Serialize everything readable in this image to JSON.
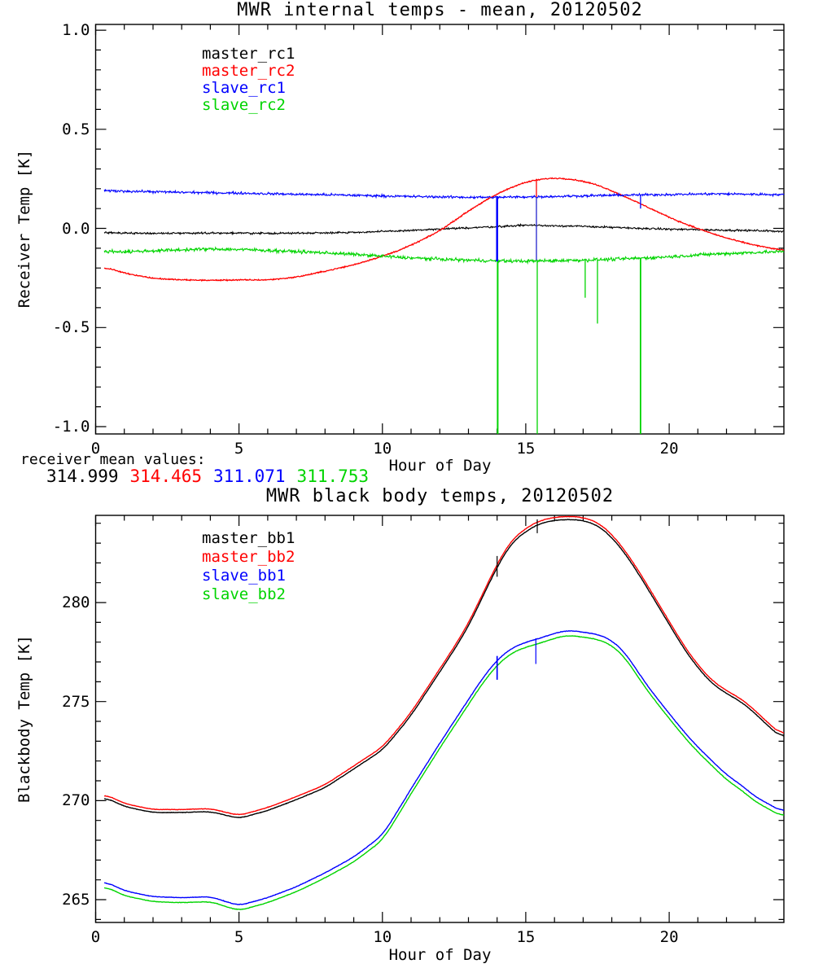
{
  "annotation": {
    "header": "receiver mean values:",
    "values": [
      {
        "text": "314.999",
        "color": "#000000"
      },
      {
        "text": "314.465",
        "color": "#ff0000"
      },
      {
        "text": "311.071",
        "color": "#0000ff"
      },
      {
        "text": "311.753",
        "color": "#00d400"
      }
    ]
  },
  "chart_data": [
    {
      "type": "line",
      "title": "MWR internal temps - mean, 20120502",
      "xlabel": "Hour of Day",
      "ylabel": "Receiver Temp [K]",
      "xlim": [
        0,
        24
      ],
      "ylim": [
        -1.037,
        1.029
      ],
      "grid": false,
      "legend_position": "upper-left-inside",
      "xticks": {
        "major": [
          0,
          5,
          10,
          15,
          20
        ],
        "labels": [
          "0",
          "5",
          "10",
          "15",
          "20"
        ],
        "minor_step": 1
      },
      "yticks": {
        "major": [
          -1.0,
          -0.5,
          0.0,
          0.5,
          1.0
        ],
        "labels": [
          "-1.0",
          "-0.5",
          "0.0",
          "0.5",
          "1.0"
        ],
        "minor_step": 0.1
      },
      "legend": [
        {
          "label": "master_rc1",
          "color": "#000000"
        },
        {
          "label": "master_rc2",
          "color": "#ff0000"
        },
        {
          "label": "slave_rc1",
          "color": "#0000ff"
        },
        {
          "label": "slave_rc2",
          "color": "#00d400"
        }
      ],
      "series": [
        {
          "name": "master_rc1",
          "color": "#000000",
          "noise": 0.0045,
          "width": 1.1,
          "x": [
            0.3,
            1,
            2,
            3,
            4,
            5,
            6,
            7,
            8,
            9,
            10,
            10.5,
            11,
            11.5,
            12,
            12.5,
            13,
            13.5,
            14,
            14.5,
            15,
            15.5,
            16,
            16.5,
            17,
            17.5,
            18,
            18.5,
            19,
            19.5,
            20,
            20.5,
            21,
            21.5,
            22,
            22.5,
            23,
            23.5,
            24
          ],
          "y": [
            -0.022,
            -0.023,
            -0.025,
            -0.024,
            -0.023,
            -0.024,
            -0.025,
            -0.024,
            -0.022,
            -0.02,
            -0.016,
            -0.013,
            -0.01,
            -0.007,
            -0.004,
            -0.001,
            0.003,
            0.006,
            0.009,
            0.012,
            0.018,
            0.014,
            0.014,
            0.012,
            0.01,
            0.008,
            0.005,
            0.002,
            0.0,
            -0.002,
            -0.004,
            -0.005,
            -0.006,
            -0.008,
            -0.009,
            -0.01,
            -0.011,
            -0.013,
            -0.015
          ]
        },
        {
          "name": "master_rc2",
          "color": "#ff0000",
          "noise": 0.003,
          "width": 1.3,
          "x": [
            0.3,
            1,
            2,
            3,
            4,
            5,
            6,
            7,
            8,
            9,
            10,
            10.5,
            11,
            11.5,
            12,
            12.5,
            13,
            13.5,
            14,
            14.5,
            15,
            15.5,
            16,
            16.5,
            17,
            17.5,
            18,
            18.5,
            19,
            19.5,
            20,
            20.5,
            21,
            21.5,
            22,
            22.5,
            23,
            23.5,
            24
          ],
          "y": [
            -0.195,
            -0.225,
            -0.252,
            -0.26,
            -0.262,
            -0.26,
            -0.26,
            -0.246,
            -0.216,
            -0.184,
            -0.14,
            -0.115,
            -0.085,
            -0.05,
            -0.012,
            0.038,
            0.088,
            0.133,
            0.173,
            0.208,
            0.233,
            0.248,
            0.254,
            0.25,
            0.238,
            0.219,
            0.19,
            0.158,
            0.124,
            0.09,
            0.056,
            0.026,
            -0.001,
            -0.026,
            -0.049,
            -0.068,
            -0.085,
            -0.099,
            -0.112
          ]
        },
        {
          "name": "slave_rc1",
          "color": "#0000ff",
          "noise": 0.006,
          "width": 1.1,
          "x": [
            0.3,
            1,
            2,
            3,
            4,
            5,
            6,
            7,
            8,
            9,
            10,
            10.5,
            11,
            11.5,
            12,
            12.5,
            13,
            13.5,
            14,
            14.5,
            15,
            15.5,
            16,
            16.5,
            17,
            17.5,
            18,
            18.5,
            19,
            19.5,
            20,
            20.5,
            21,
            21.5,
            22,
            22.5,
            23,
            23.5,
            24
          ],
          "y": [
            0.19,
            0.188,
            0.185,
            0.182,
            0.18,
            0.178,
            0.175,
            0.172,
            0.17,
            0.167,
            0.164,
            0.162,
            0.161,
            0.16,
            0.159,
            0.158,
            0.157,
            0.157,
            0.157,
            0.158,
            0.159,
            0.16,
            0.161,
            0.163,
            0.164,
            0.166,
            0.167,
            0.168,
            0.169,
            0.17,
            0.171,
            0.172,
            0.173,
            0.174,
            0.174,
            0.173,
            0.172,
            0.171,
            0.17
          ]
        },
        {
          "name": "slave_rc2",
          "color": "#00d400",
          "noise": 0.008,
          "width": 1.1,
          "x": [
            0.3,
            1,
            2,
            3,
            4,
            5,
            6,
            7,
            8,
            9,
            10,
            10.5,
            11,
            11.5,
            12,
            12.5,
            13,
            13.5,
            14,
            14.5,
            15,
            15.5,
            16,
            16.5,
            17,
            17.5,
            18,
            18.5,
            19,
            19.5,
            20,
            20.5,
            21,
            21.5,
            22,
            22.5,
            23,
            23.5,
            24
          ],
          "y": [
            -0.115,
            -0.118,
            -0.113,
            -0.108,
            -0.104,
            -0.106,
            -0.111,
            -0.117,
            -0.123,
            -0.131,
            -0.14,
            -0.145,
            -0.149,
            -0.152,
            -0.155,
            -0.158,
            -0.16,
            -0.162,
            -0.164,
            -0.165,
            -0.165,
            -0.164,
            -0.163,
            -0.161,
            -0.16,
            -0.158,
            -0.156,
            -0.153,
            -0.15,
            -0.147,
            -0.143,
            -0.139,
            -0.134,
            -0.13,
            -0.127,
            -0.124,
            -0.121,
            -0.119,
            -0.117
          ]
        }
      ],
      "spikes": [
        {
          "color": "#0000ff",
          "x": 14.0,
          "y1": 0.158,
          "y2": -0.168,
          "width": 2.5
        },
        {
          "color": "#00d400",
          "x": 14.02,
          "y1": -0.165,
          "y2": -1.037,
          "width": 2.0
        },
        {
          "color": "#ff0000",
          "x": 15.37,
          "y1": 0.25,
          "y2": 0.158,
          "width": 1.3
        },
        {
          "color": "#2222cc",
          "x": 15.37,
          "y1": 0.158,
          "y2": -0.16,
          "width": 1.3
        },
        {
          "color": "#00d400",
          "x": 15.4,
          "y1": -0.163,
          "y2": -1.037,
          "width": 1.3
        },
        {
          "color": "#00d400",
          "x": 17.07,
          "y1": -0.16,
          "y2": -0.35,
          "width": 1.3
        },
        {
          "color": "#00d400",
          "x": 17.5,
          "y1": -0.16,
          "y2": -0.48,
          "width": 1.3
        },
        {
          "color": "#0000ff",
          "x": 19.0,
          "y1": 0.17,
          "y2": 0.1,
          "width": 1.3
        },
        {
          "color": "#00d400",
          "x": 19.0,
          "y1": -0.148,
          "y2": -1.037,
          "width": 1.8
        }
      ]
    },
    {
      "type": "line",
      "title": "MWR black body temps, 20120502",
      "xlabel": "Hour of Day",
      "ylabel": "Blackbody Temp [K]",
      "xlim": [
        0,
        24
      ],
      "ylim": [
        263.85,
        284.4
      ],
      "grid": false,
      "legend_position": "upper-left-inside",
      "xticks": {
        "major": [
          0,
          5,
          10,
          15,
          20
        ],
        "labels": [
          "0",
          "5",
          "10",
          "15",
          "20"
        ],
        "minor_step": 1
      },
      "yticks": {
        "major": [
          265,
          270,
          275,
          280
        ],
        "labels": [
          "265",
          "270",
          "275",
          "280"
        ],
        "minor_step": 1
      },
      "legend": [
        {
          "label": "master_bb1",
          "color": "#000000"
        },
        {
          "label": "master_bb2",
          "color": "#ff0000"
        },
        {
          "label": "slave_bb1",
          "color": "#0000ff"
        },
        {
          "label": "slave_bb2",
          "color": "#00d400"
        }
      ],
      "series": [
        {
          "name": "master_bb1",
          "color": "#000000",
          "noise": 0.012,
          "width": 1.4,
          "x": [
            0.3,
            1,
            2,
            3,
            4,
            5,
            6,
            7,
            8,
            9,
            10,
            10.5,
            11,
            11.5,
            12,
            12.5,
            13,
            13.5,
            14,
            14.5,
            15,
            15.5,
            16,
            16.5,
            17,
            17.5,
            18,
            18.5,
            19,
            19.5,
            20,
            20.5,
            21,
            21.5,
            22,
            22.5,
            23,
            23.5,
            24
          ],
          "y": [
            270.2,
            269.7,
            269.4,
            269.4,
            269.45,
            269.1,
            269.5,
            270.05,
            270.65,
            271.6,
            272.55,
            273.4,
            274.3,
            275.4,
            276.5,
            277.6,
            278.8,
            280.3,
            281.8,
            283.0,
            283.6,
            284.0,
            284.15,
            284.2,
            284.15,
            283.9,
            283.3,
            282.4,
            281.3,
            280.1,
            278.9,
            277.7,
            276.7,
            275.9,
            275.4,
            275.0,
            274.4,
            273.7,
            273.1
          ]
        },
        {
          "name": "master_bb2",
          "color": "#ff0000",
          "noise": 0.012,
          "width": 1.4,
          "x": [
            0.3,
            1,
            2,
            3,
            4,
            5,
            6,
            7,
            8,
            9,
            10,
            10.5,
            11,
            11.5,
            12,
            12.5,
            13,
            13.5,
            14,
            14.5,
            15,
            15.5,
            16,
            16.5,
            17,
            17.5,
            18,
            18.5,
            19,
            19.5,
            20,
            20.5,
            21,
            21.5,
            22,
            22.5,
            23,
            23.5,
            24
          ],
          "y": [
            270.35,
            269.85,
            269.55,
            269.55,
            269.6,
            269.25,
            269.65,
            270.2,
            270.8,
            271.75,
            272.7,
            273.55,
            274.45,
            275.55,
            276.65,
            277.75,
            278.95,
            280.45,
            281.95,
            283.15,
            283.75,
            284.15,
            284.3,
            284.35,
            284.3,
            284.05,
            283.45,
            282.55,
            281.45,
            280.25,
            279.05,
            277.85,
            276.85,
            276.05,
            275.55,
            275.15,
            274.55,
            273.85,
            273.25
          ]
        },
        {
          "name": "slave_bb1",
          "color": "#0000ff",
          "noise": 0.012,
          "width": 1.4,
          "x": [
            0.3,
            1,
            2,
            3,
            4,
            5,
            6,
            7,
            8,
            9,
            10,
            10.5,
            11,
            11.5,
            12,
            12.5,
            13,
            13.5,
            14,
            14.5,
            15,
            15.5,
            16,
            16.5,
            17,
            17.5,
            18,
            18.5,
            19,
            19.5,
            20,
            20.5,
            21,
            21.5,
            22,
            22.5,
            23,
            23.5,
            24
          ],
          "y": [
            265.95,
            265.45,
            265.15,
            265.1,
            265.15,
            264.7,
            265.1,
            265.65,
            266.35,
            267.15,
            268.25,
            269.4,
            270.6,
            271.75,
            272.9,
            274.0,
            275.1,
            276.2,
            277.1,
            277.7,
            278.0,
            278.2,
            278.45,
            278.6,
            278.5,
            278.4,
            278.1,
            277.4,
            276.3,
            275.3,
            274.4,
            273.5,
            272.7,
            272.0,
            271.3,
            270.8,
            270.2,
            269.8,
            269.4
          ]
        },
        {
          "name": "slave_bb2",
          "color": "#00d400",
          "noise": 0.012,
          "width": 1.4,
          "x": [
            0.3,
            1,
            2,
            3,
            4,
            5,
            6,
            7,
            8,
            9,
            10,
            10.5,
            11,
            11.5,
            12,
            12.5,
            13,
            13.5,
            14,
            14.5,
            15,
            15.5,
            16,
            16.5,
            17,
            17.5,
            18,
            18.5,
            19,
            19.5,
            20,
            20.5,
            21,
            21.5,
            22,
            22.5,
            23,
            23.5,
            24
          ],
          "y": [
            265.7,
            265.2,
            264.9,
            264.85,
            264.9,
            264.45,
            264.85,
            265.4,
            266.1,
            266.9,
            268.0,
            269.15,
            270.35,
            271.5,
            272.65,
            273.75,
            274.85,
            275.95,
            276.85,
            277.45,
            277.75,
            277.95,
            278.2,
            278.35,
            278.25,
            278.15,
            277.85,
            277.15,
            276.05,
            275.05,
            274.15,
            273.25,
            272.45,
            271.75,
            271.05,
            270.55,
            269.95,
            269.55,
            269.15
          ]
        }
      ],
      "spikes": [
        {
          "color": "#000000",
          "x": 14.0,
          "y1": 282.35,
          "y2": 281.3,
          "width": 1.2
        },
        {
          "color": "#000000",
          "x": 15.4,
          "y1": 284.2,
          "y2": 283.5,
          "width": 1.2
        },
        {
          "color": "#0000ff",
          "x": 14.0,
          "y1": 277.3,
          "y2": 276.1,
          "width": 1.7
        },
        {
          "color": "#0000ff",
          "x": 15.35,
          "y1": 278.2,
          "y2": 276.9,
          "width": 1.2
        }
      ]
    }
  ]
}
